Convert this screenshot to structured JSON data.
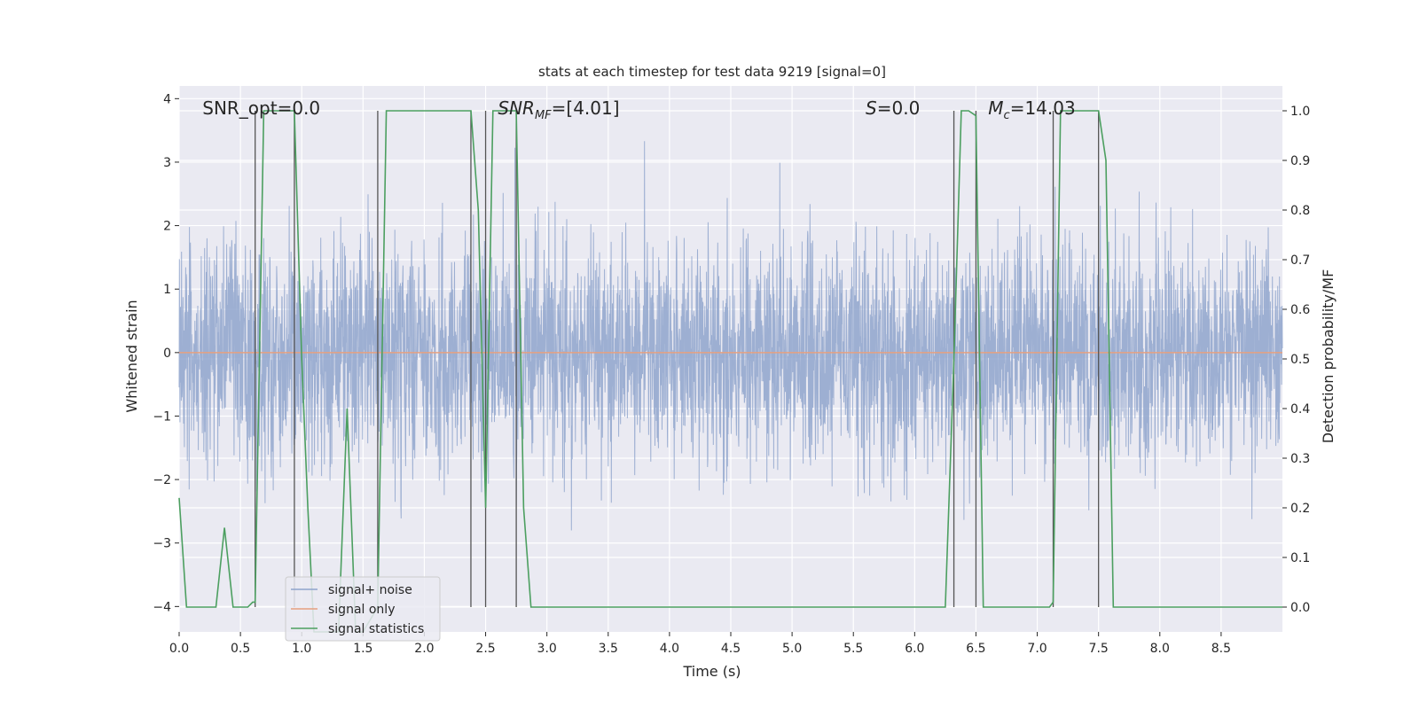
{
  "chart_data": {
    "type": "line",
    "title": "stats at each timestep for test data 9219 [signal=0]",
    "xlabel": "Time (s)",
    "ylabel_left": "Whitened strain",
    "ylabel_right": "Detection probability/MF",
    "xlim": [
      0.0,
      9.0
    ],
    "ylim_left": [
      -4.4,
      4.2
    ],
    "ylim_right": [
      -0.05,
      1.05
    ],
    "x_ticks": [
      "0.0",
      "0.5",
      "1.0",
      "1.5",
      "2.0",
      "2.5",
      "3.0",
      "3.5",
      "4.0",
      "4.5",
      "5.0",
      "5.5",
      "6.0",
      "6.5",
      "7.0",
      "7.5",
      "8.0",
      "8.5"
    ],
    "y_ticks_left": [
      "4",
      "3",
      "2",
      "1",
      "0",
      "−1",
      "−2",
      "−3",
      "−4"
    ],
    "y_ticks_right": [
      "1.0",
      "0.9",
      "0.8",
      "0.7",
      "0.6",
      "0.5",
      "0.4",
      "0.3",
      "0.2",
      "0.1",
      "0.0"
    ],
    "grid": true,
    "legend_position": "lower-left",
    "annotations": [
      {
        "label": "SNR_opt=0.0",
        "x": 0.19,
        "y": 3.85
      },
      {
        "label": "SNR_MF=[4.01]",
        "x": 2.6,
        "y": 3.85
      },
      {
        "label": "S=0.0",
        "x": 5.6,
        "y": 3.85
      },
      {
        "label": "M_c=14.03",
        "x": 6.6,
        "y": 3.85
      }
    ],
    "vertical_lines_x": [
      0.62,
      0.94,
      1.62,
      2.38,
      2.5,
      2.75,
      6.32,
      6.5,
      7.13,
      7.5
    ],
    "series": [
      {
        "name": "signal+ noise",
        "axis": "left",
        "color": "#8fa4cc",
        "description_values": {
          "noise_std": 0.85,
          "duration_s": 9.0
        },
        "x": [],
        "values": []
      },
      {
        "name": "signal only",
        "axis": "left",
        "color": "#e6a080",
        "x": [
          0.0,
          9.0
        ],
        "values": [
          0.0,
          0.0
        ]
      },
      {
        "name": "signal statistics",
        "axis": "right",
        "color": "#4c9f60",
        "x": [
          0.0,
          0.06,
          0.3,
          0.37,
          0.44,
          0.56,
          0.6,
          0.62,
          0.69,
          0.9,
          0.94,
          1.0,
          1.05,
          1.1,
          1.3,
          1.37,
          1.44,
          1.5,
          1.62,
          1.69,
          2.38,
          2.44,
          2.5,
          2.56,
          2.75,
          2.81,
          2.87,
          6.25,
          6.32,
          6.38,
          6.44,
          6.5,
          6.56,
          7.1,
          7.13,
          7.19,
          7.5,
          7.56,
          7.62,
          9.0
        ],
        "values": [
          0.22,
          0.0,
          0.0,
          0.16,
          0.0,
          0.0,
          0.01,
          0.01,
          1.0,
          1.0,
          1.0,
          0.5,
          0.2,
          -0.05,
          -0.05,
          0.4,
          -0.05,
          -0.05,
          0.0,
          1.0,
          1.0,
          0.8,
          0.2,
          1.0,
          1.0,
          0.2,
          0.0,
          0.0,
          0.5,
          1.0,
          1.0,
          0.99,
          0.0,
          0.0,
          0.01,
          1.0,
          1.0,
          0.9,
          0.0,
          0.0
        ]
      }
    ]
  }
}
